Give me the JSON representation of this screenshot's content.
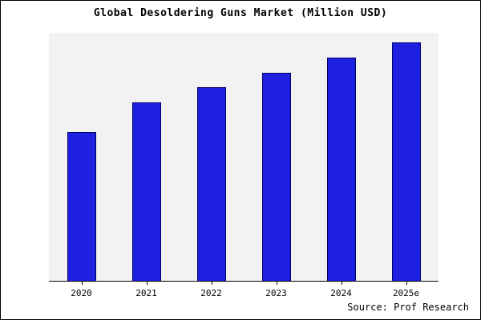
{
  "title": "Global Desoldering Guns Market (Million USD)",
  "source": "Source: Prof Research",
  "colors": {
    "bar_fill": "#1e20e0",
    "bar_edge": "#000066",
    "plot_bg": "#f2f2f2",
    "frame_border": "#000000"
  },
  "chart_data": {
    "type": "bar",
    "title": "Global Desoldering Guns Market (Million USD)",
    "categories": [
      "2020",
      "2021",
      "2022",
      "2023",
      "2024",
      "2025e"
    ],
    "values": [
      60,
      72,
      78,
      84,
      90,
      96
    ],
    "xlabel": "",
    "ylabel": "",
    "ylim": [
      0,
      100
    ],
    "grid": false,
    "legend": "none",
    "annotation": "Source: Prof Research"
  }
}
